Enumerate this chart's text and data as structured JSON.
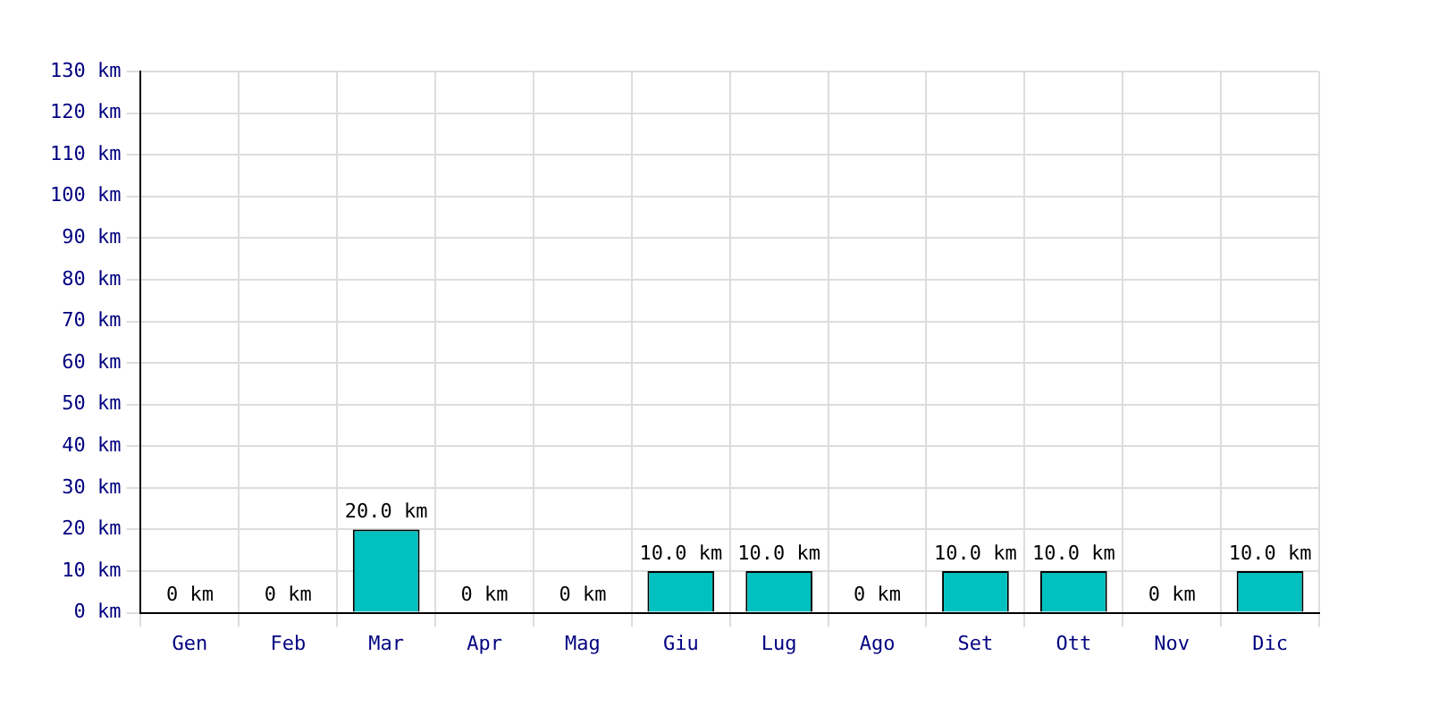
{
  "chart_data": {
    "type": "bar",
    "categories": [
      "Gen",
      "Feb",
      "Mar",
      "Apr",
      "Mag",
      "Giu",
      "Lug",
      "Ago",
      "Set",
      "Ott",
      "Nov",
      "Dic"
    ],
    "values": [
      0,
      0,
      20,
      0,
      0,
      10,
      10,
      0,
      10,
      10,
      0,
      10
    ],
    "value_labels": [
      "0 km",
      "0 km",
      "20.0 km",
      "0 km",
      "0 km",
      "10.0 km",
      "10.0 km",
      "0 km",
      "10.0 km",
      "10.0 km",
      "0 km",
      "10.0 km"
    ],
    "color": "#00c0c0",
    "ylim": [
      0,
      130
    ],
    "yticks": [
      {
        "value": 0,
        "label": "0 km"
      },
      {
        "value": 10,
        "label": "10 km"
      },
      {
        "value": 20,
        "label": "20 km"
      },
      {
        "value": 30,
        "label": "30 km"
      },
      {
        "value": 40,
        "label": "40 km"
      },
      {
        "value": 50,
        "label": "50 km"
      },
      {
        "value": 60,
        "label": "60 km"
      },
      {
        "value": 70,
        "label": "70 km"
      },
      {
        "value": 80,
        "label": "80 km"
      },
      {
        "value": 90,
        "label": "90 km"
      },
      {
        "value": 100,
        "label": "100 km"
      },
      {
        "value": 110,
        "label": "110 km"
      },
      {
        "value": 120,
        "label": "120 km"
      },
      {
        "value": 130,
        "label": "130 km"
      }
    ],
    "grid": true,
    "legend": false
  }
}
